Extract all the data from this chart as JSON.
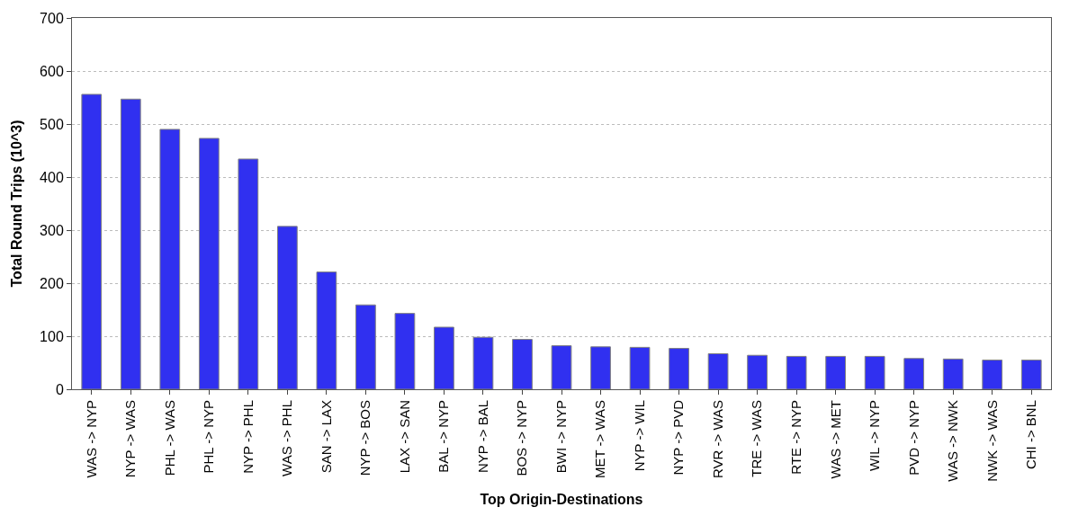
{
  "chart_data": {
    "type": "bar",
    "xlabel": "Top Origin-Destinations",
    "ylabel": "Total Round Trips (10^3)",
    "categories": [
      "WAS -> NYP",
      "NYP -> WAS",
      "PHL -> WAS",
      "PHL -> NYP",
      "NYP -> PHL",
      "WAS -> PHL",
      "SAN -> LAX",
      "NYP -> BOS",
      "LAX -> SAN",
      "BAL -> NYP",
      "NYP -> BAL",
      "BOS -> NYP",
      "BWI -> NYP",
      "MET -> WAS",
      "NYP -> WIL",
      "NYP -> PVD",
      "RVR -> WAS",
      "TRE -> WAS",
      "RTE -> NYP",
      "WAS -> MET",
      "WIL -> NYP",
      "PVD -> NYP",
      "WAS -> NWK",
      "NWK -> WAS",
      "CHI -> BNL"
    ],
    "values": [
      556,
      547,
      490,
      473,
      434,
      307,
      221,
      159,
      143,
      117,
      98,
      94,
      82,
      80,
      79,
      77,
      67,
      64,
      62,
      62,
      62,
      58,
      57,
      55,
      55
    ],
    "color": "#3030f0",
    "ylim": [
      0,
      700
    ],
    "yticks": [
      0,
      100,
      200,
      300,
      400,
      500,
      600,
      700
    ],
    "grid": "y"
  }
}
